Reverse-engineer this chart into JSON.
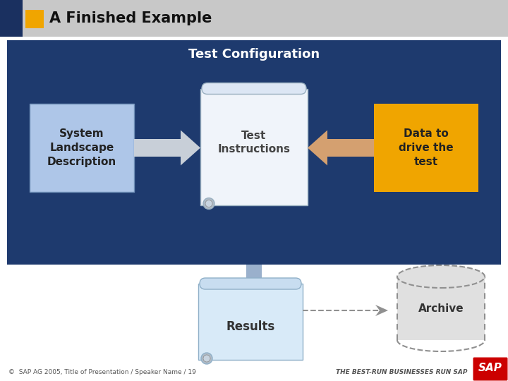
{
  "title": "A Finished Example",
  "bg_header_color": "#c8c8c8",
  "bg_dark_blue": "#1e3a6e",
  "bg_main_color": "#ffffff",
  "orange_sq_color": "#f0a500",
  "blue_box_color": "#aec6e8",
  "scroll_body_color": "#eef3fa",
  "scroll_top_color": "#d8e4f0",
  "scroll_border_color": "#9ab0c8",
  "results_body_color": "#d0e4f4",
  "results_top_color": "#c0d8ef",
  "arrow_gray_color": "#c8cfd8",
  "arrow_orange_color": "#d4a070",
  "arrow_down_top": "#8898b0",
  "arrow_down_bot": "#5070a0",
  "orange_box_color": "#f0a500",
  "archive_body_color": "#e0e0e0",
  "archive_border_color": "#909090",
  "sap_red": "#cc0000",
  "title_text": "Test Configuration",
  "box1_text": "System\nLandscape\nDescription",
  "box2_text": "Test\nInstructions",
  "box3_text": "Data to\ndrive the\ntest",
  "box4_text": "Results",
  "archive_text": "Archive",
  "footer_left": "©  SAP AG 2005, Title of Presentation / Speaker Name / 19",
  "footer_right": "THE BEST-RUN BUSINESSES RUN SAP",
  "header_title": "A Finished Example",
  "dark_blue_left": "#1a3060"
}
